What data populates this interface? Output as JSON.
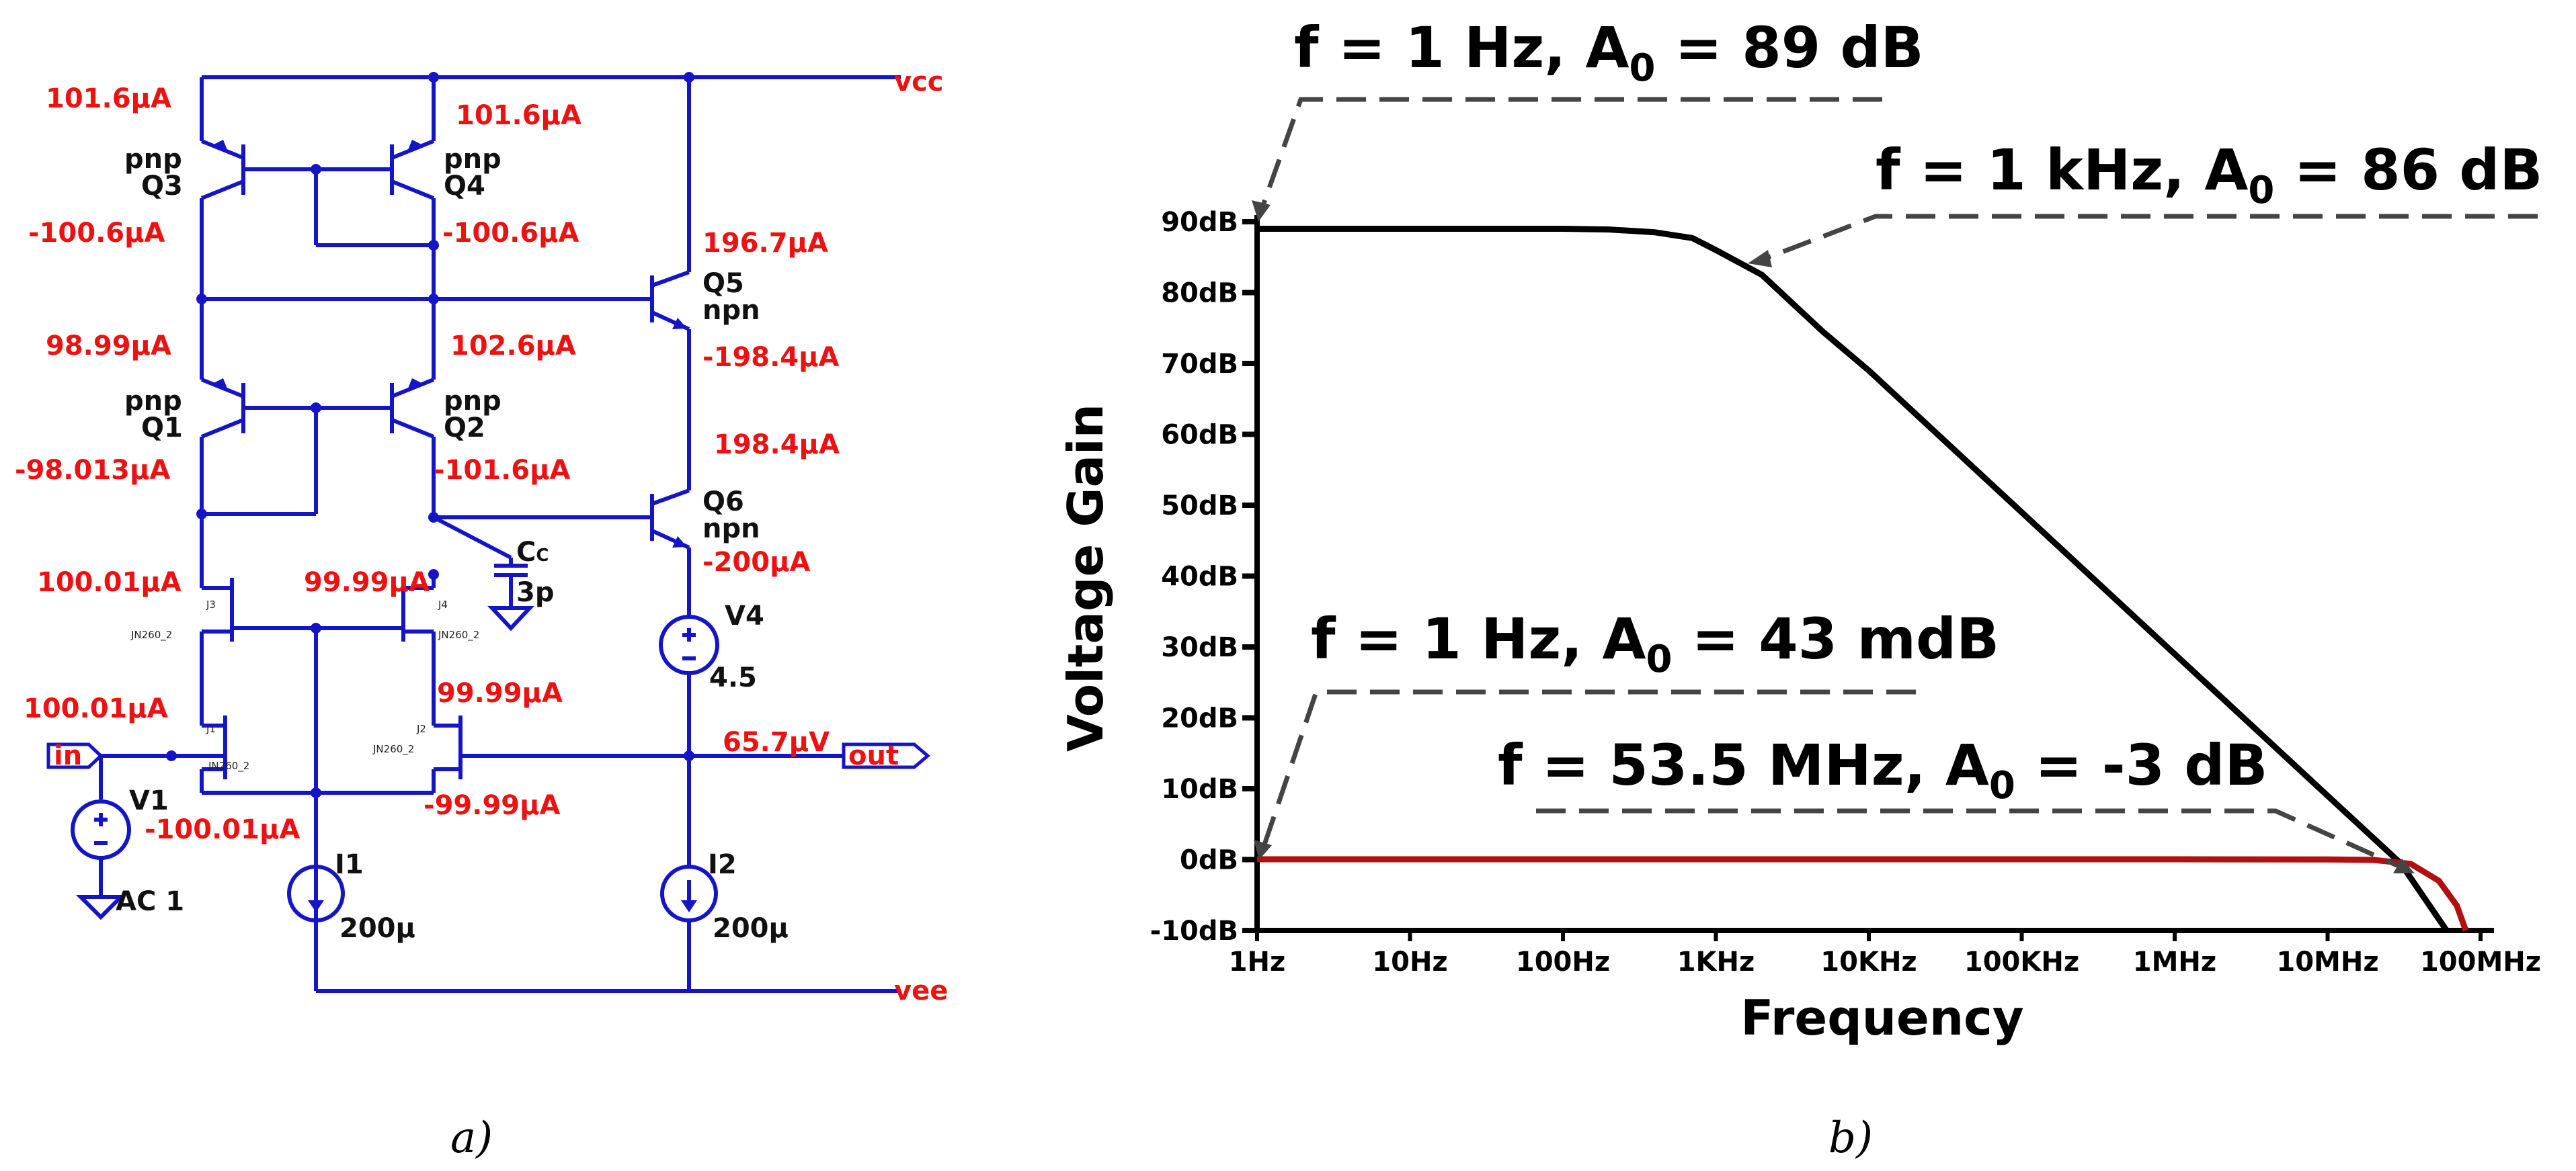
{
  "panel_a": {
    "caption": "a)",
    "nets": {
      "vcc": "vcc",
      "vee": "vee",
      "out_value": "65.7µV"
    },
    "ports": {
      "in": "in",
      "out": "out"
    },
    "transistors": {
      "q3": {
        "type": "pnp",
        "name": "Q3",
        "emitter_current": "101.6µA",
        "collector_current": "-100.6µA"
      },
      "q4": {
        "type": "pnp",
        "name": "Q4",
        "emitter_current": "101.6µA",
        "collector_current": "-100.6µA"
      },
      "q1": {
        "type": "pnp",
        "name": "Q1",
        "emitter_current": "98.99µA",
        "collector_current": "-98.013µA"
      },
      "q2": {
        "type": "pnp",
        "name": "Q2",
        "emitter_current": "102.6µA",
        "collector_current": "-101.6µA"
      },
      "q5": {
        "name": "Q5",
        "type": "npn",
        "collector_current": "196.7µA",
        "emitter_current": "-198.4µA"
      },
      "q6": {
        "name": "Q6",
        "type": "npn",
        "collector_current": "198.4µA",
        "emitter_current": "-200µA"
      }
    },
    "jfets": {
      "j3": {
        "ref": "J3",
        "model": "JN260_2",
        "current": "100.01µA"
      },
      "j4": {
        "ref": "J4",
        "model": "JN260_2",
        "current": "99.99µA"
      },
      "j1": {
        "ref": "J1",
        "model": "JN260_2",
        "drain_current": "100.01µA",
        "source_current": "-100.01µA"
      },
      "j2": {
        "ref": "J2",
        "model": "JN260_2",
        "drain_current": "99.99µA",
        "source_current": "-99.99µA"
      }
    },
    "cap": {
      "name": "C",
      "sub": "C",
      "value": "3p"
    },
    "sources": {
      "v1": {
        "name": "V1",
        "value": "AC 1"
      },
      "v4": {
        "name": "V4",
        "value": "4.5"
      },
      "i1": {
        "name": "I1",
        "value": "200µ"
      },
      "i2": {
        "name": "I2",
        "value": "200µ"
      }
    }
  },
  "panel_b": {
    "caption": "b)",
    "annotations": [
      {
        "main": "f = 1 Hz, A",
        "sub": "0",
        "tail": " = 89 dB"
      },
      {
        "main": "f = 1 kHz, A",
        "sub": "0",
        "tail": " = 86 dB"
      },
      {
        "main": "f = 1 Hz, A",
        "sub": "0",
        "tail": " = 43 mdB"
      },
      {
        "main": "f = 53.5 MHz, A",
        "sub": "0",
        "tail": " = -3 dB"
      }
    ]
  },
  "chart_data": {
    "type": "line",
    "title": "",
    "xlabel": "Frequency",
    "ylabel": "Voltage Gain",
    "x_scale": "log",
    "xlim": [
      1,
      100000000
    ],
    "ylim": [
      -10,
      90
    ],
    "x_ticks": [
      1,
      10,
      100,
      1000,
      10000,
      100000,
      1000000,
      10000000,
      100000000
    ],
    "x_tick_labels": [
      "1Hz",
      "10Hz",
      "100Hz",
      "1KHz",
      "10KHz",
      "100KHz",
      "1MHz",
      "10MHz",
      "100MHz"
    ],
    "y_ticks": [
      -10,
      0,
      10,
      20,
      30,
      40,
      50,
      60,
      70,
      80,
      90
    ],
    "y_tick_labels": [
      "-10dB",
      "0dB",
      "10dB",
      "20dB",
      "30dB",
      "40dB",
      "50dB",
      "60dB",
      "70dB",
      "80dB",
      "90dB"
    ],
    "grid": false,
    "series": [
      {
        "color": "#000000",
        "x": [
          1,
          10,
          100,
          200,
          400,
          700,
          1000,
          2000,
          5000,
          10000,
          100000,
          1000000,
          10000000,
          30000000,
          60000000
        ],
        "y": [
          89,
          89,
          89,
          88.9,
          88.5,
          87.7,
          86,
          82.5,
          74.5,
          69,
          49,
          29,
          9,
          -0.5,
          -10
        ]
      },
      {
        "color": "#b01010",
        "x": [
          1,
          10,
          100,
          1000,
          10000,
          100000,
          1000000,
          10000000,
          20000000,
          35000000,
          53500000,
          70000000,
          80000000
        ],
        "y": [
          0.043,
          0.043,
          0.043,
          0.043,
          0.043,
          0.043,
          0.043,
          0.02,
          -0.05,
          -0.6,
          -3,
          -6.5,
          -10
        ]
      }
    ],
    "colors": {
      "curve_main": "#000000",
      "curve_closed": "#b01010",
      "leader": "#444444"
    }
  }
}
